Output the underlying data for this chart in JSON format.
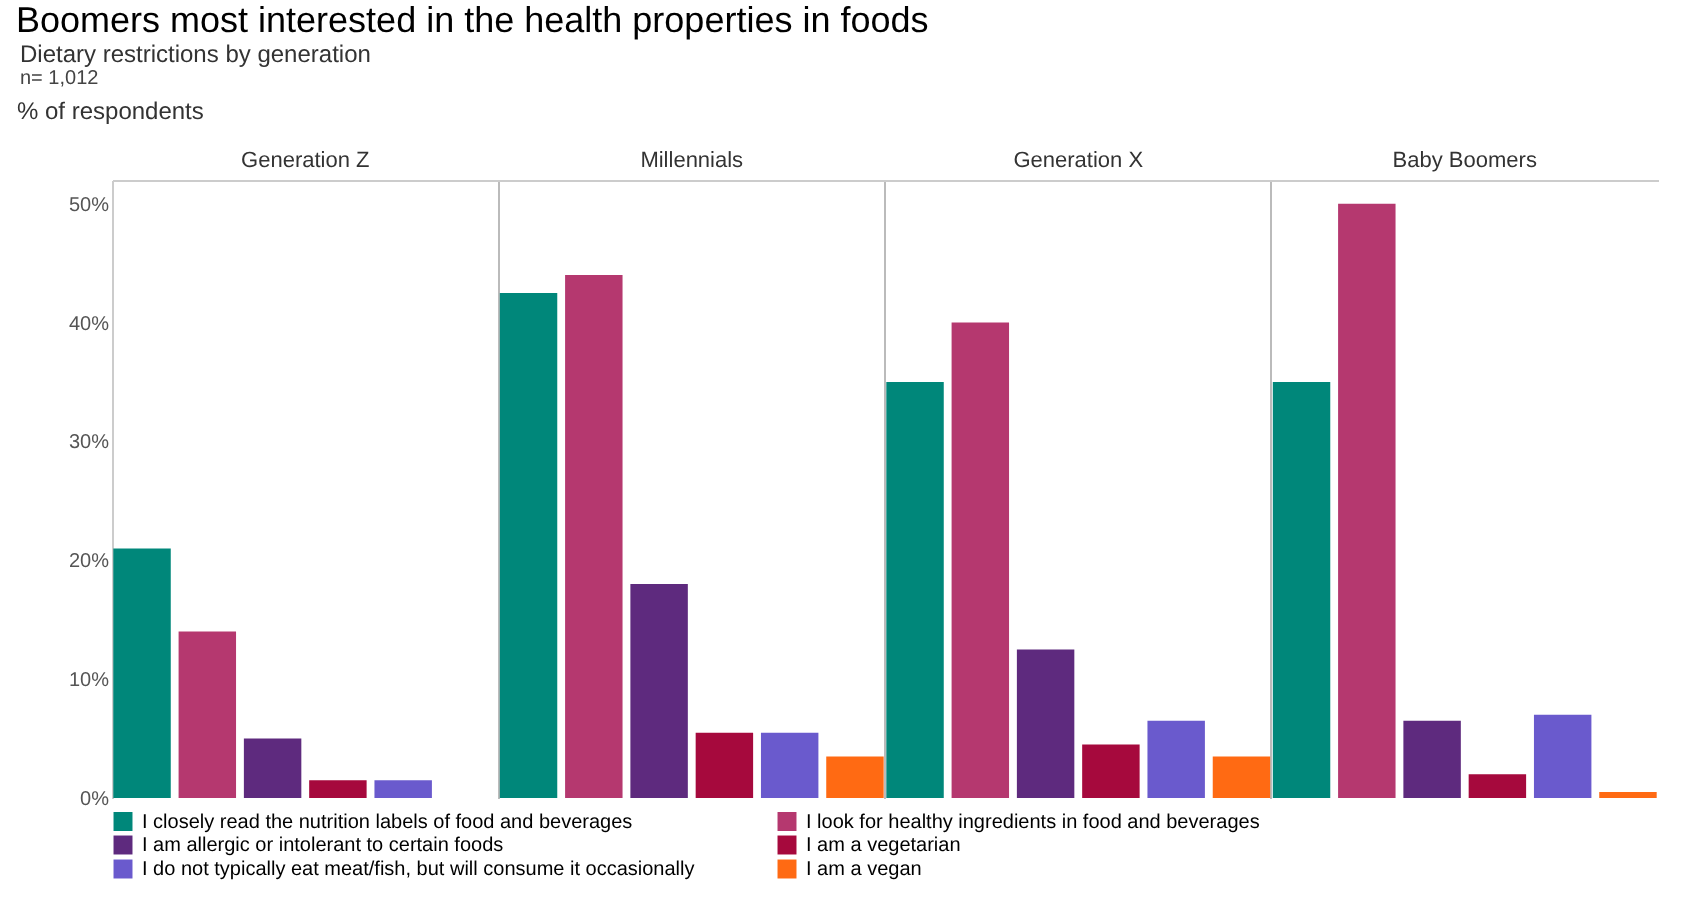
{
  "chart_data": {
    "type": "bar",
    "title": "Boomers most interested in the health properties in foods",
    "subtitle": "Dietary restrictions by generation",
    "annotations": [
      "n= 1,012"
    ],
    "ylabel": "% of respondents",
    "categories": [
      "Generation Z",
      "Millennials",
      "Generation X",
      "Baby Boomers"
    ],
    "series": [
      {
        "name": "I closely read the nutrition labels of food and beverages",
        "color": "#00877a",
        "values": [
          21,
          42.5,
          35,
          35
        ]
      },
      {
        "name": "I look for healthy ingredients in food and beverages",
        "color": "#b5386f",
        "values": [
          14,
          44,
          40,
          50
        ]
      },
      {
        "name": "I am allergic or intolerant to certain foods",
        "color": "#5e2a7e",
        "values": [
          5,
          18,
          12.5,
          6.5
        ]
      },
      {
        "name": "I am a vegetarian",
        "color": "#a6093d",
        "values": [
          1.5,
          5.5,
          4.5,
          2
        ]
      },
      {
        "name": "I do not typically eat meat/fish, but will consume it occasionally",
        "color": "#6a5acd",
        "values": [
          1.5,
          5.5,
          6.5,
          7
        ]
      },
      {
        "name": "I am a vegan",
        "color": "#ff6a13",
        "values": [
          0,
          3.5,
          3.5,
          0.5
        ]
      }
    ],
    "ylim": [
      0,
      52
    ],
    "yticks": [
      {
        "value": 0,
        "label": "0%"
      },
      {
        "value": 10,
        "label": "10%"
      },
      {
        "value": 20,
        "label": "20%"
      },
      {
        "value": 30,
        "label": "30%"
      },
      {
        "value": 40,
        "label": "40%"
      },
      {
        "value": 50,
        "label": "50%"
      }
    ],
    "grid": "x",
    "legend": "bottom"
  }
}
